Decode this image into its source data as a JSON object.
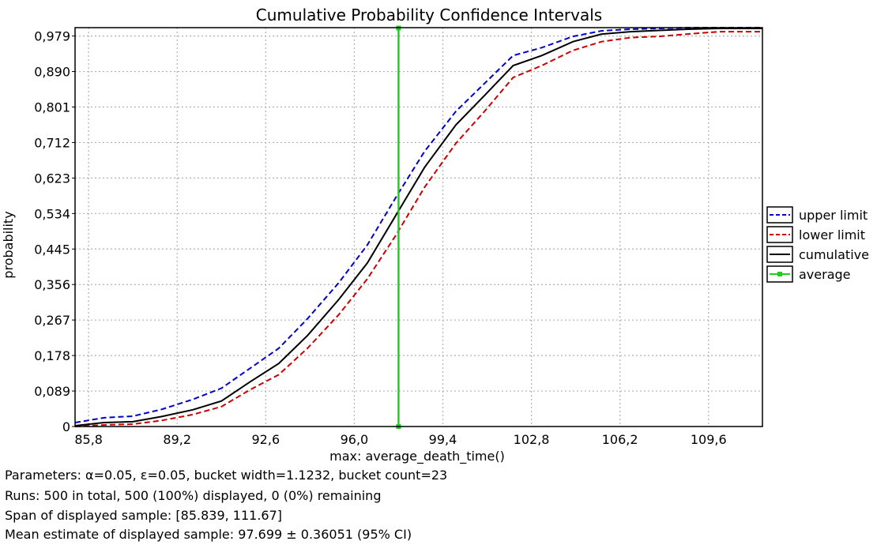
{
  "chart_data": {
    "type": "line",
    "title": "Cumulative Probability Confidence Intervals",
    "xlabel": "max: average_death_time()",
    "ylabel": "probability",
    "xlim": [
      85.28,
      111.67
    ],
    "ylim": [
      0,
      1.0
    ],
    "x_ticks": [
      "85,8",
      "89,2",
      "92,6",
      "96,0",
      "99,4",
      "102,8",
      "106,2",
      "109,6"
    ],
    "x_tick_values": [
      85.8,
      89.2,
      92.6,
      96.0,
      99.4,
      102.8,
      106.2,
      109.6
    ],
    "y_ticks": [
      "0",
      "0,089",
      "0,178",
      "0,267",
      "0,356",
      "0,445",
      "0,534",
      "0,623",
      "0,712",
      "0,801",
      "0,890",
      "0,979"
    ],
    "y_tick_values": [
      0,
      0.089,
      0.178,
      0.267,
      0.356,
      0.445,
      0.534,
      0.623,
      0.712,
      0.801,
      0.89,
      0.979
    ],
    "grid": true,
    "legend_position": "right",
    "x": [
      85.28,
      86.4,
      87.5,
      88.6,
      89.8,
      90.9,
      92.0,
      93.1,
      94.2,
      95.4,
      96.5,
      97.6,
      98.7,
      99.9,
      101.0,
      102.1,
      103.2,
      104.4,
      105.5,
      106.6,
      107.7,
      108.8,
      110.0,
      111.1,
      111.67
    ],
    "series": [
      {
        "name": "upper limit",
        "color": "#0000cc",
        "style": "dashed",
        "values": [
          0.01,
          0.022,
          0.026,
          0.043,
          0.068,
          0.096,
          0.146,
          0.196,
          0.27,
          0.36,
          0.455,
          0.575,
          0.69,
          0.79,
          0.86,
          0.93,
          0.95,
          0.978,
          0.992,
          0.996,
          0.998,
          1.0,
          1.0,
          1.0,
          1.0
        ]
      },
      {
        "name": "lower limit",
        "color": "#cc0000",
        "style": "dashed",
        "values": [
          0.0,
          0.004,
          0.006,
          0.015,
          0.03,
          0.05,
          0.092,
          0.13,
          0.196,
          0.28,
          0.37,
          0.48,
          0.6,
          0.71,
          0.79,
          0.875,
          0.905,
          0.943,
          0.965,
          0.975,
          0.978,
          0.984,
          0.99,
          0.99,
          0.99
        ]
      },
      {
        "name": "cumulative",
        "color": "#000000",
        "style": "solid",
        "values": [
          0.002,
          0.01,
          0.012,
          0.025,
          0.042,
          0.064,
          0.112,
          0.158,
          0.228,
          0.318,
          0.41,
          0.53,
          0.65,
          0.756,
          0.83,
          0.905,
          0.93,
          0.965,
          0.984,
          0.99,
          0.993,
          0.996,
          0.998,
          0.998,
          0.998
        ]
      }
    ],
    "average": {
      "name": "average",
      "color": "#22cc22",
      "x": 97.699,
      "y_range": [
        0,
        0.999
      ]
    }
  },
  "stats": {
    "parameters": "Parameters: α=0.05, ε=0.05, bucket width=1.1232, bucket count=23",
    "runs": "Runs: 500 in total, 500 (100%) displayed, 0 (0%) remaining",
    "span": "Span of displayed sample: [85.839, 111.67]",
    "mean": "Mean estimate of displayed sample: 97.699 ± 0.36051 (95% CI)"
  }
}
